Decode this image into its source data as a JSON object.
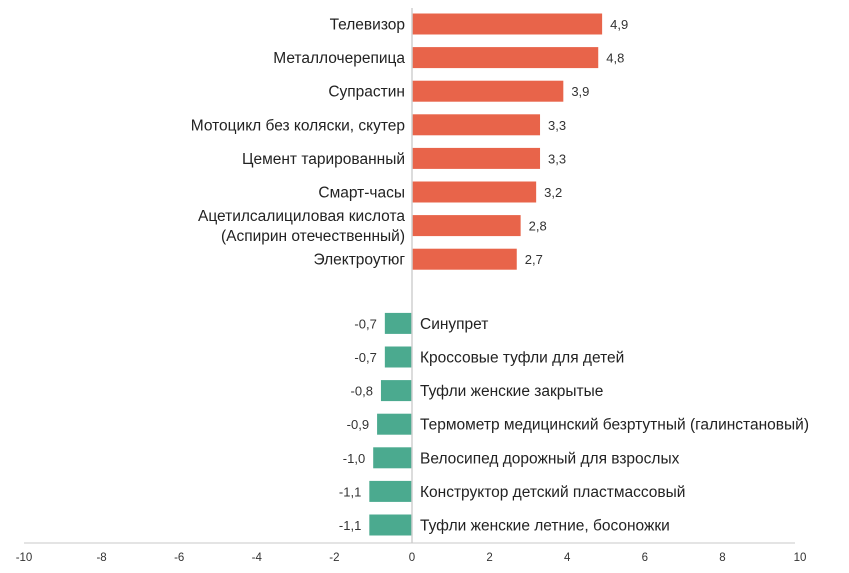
{
  "chart_data": {
    "type": "bar",
    "orientation": "horizontal",
    "xlim": [
      -10,
      10
    ],
    "xticks": [
      "-10",
      "-8",
      "-6",
      "-4",
      "-2",
      "0",
      "2",
      "4",
      "6",
      "8",
      "10"
    ],
    "grid": false,
    "colors": {
      "positive": "#E8644A",
      "negative": "#4BAA8F",
      "axis": "#d0d0d0"
    },
    "categories": [
      "Телевизор",
      "Металлочерепица",
      "Супрастин",
      "Мотоцикл без коляски, скутер",
      "Цемент тарированный",
      "Смарт-часы",
      "Ацетилсалициловая кислота\n(Аспирин отечественный)",
      "Электроутюг",
      "Синупрет",
      "Кроссовые туфли для детей",
      "Туфли женские закрытые",
      "Термометр медицинский безртутный (галинстановый)",
      "Велосипед дорожный для взрослых",
      "Конструктор детский пластмассовый",
      "Туфли женские летние, босоножки"
    ],
    "values": [
      4.9,
      4.8,
      3.9,
      3.3,
      3.3,
      3.2,
      2.8,
      2.7,
      -0.7,
      -0.7,
      -0.8,
      -0.9,
      -1.0,
      -1.1,
      -1.1
    ],
    "value_labels": [
      "4,9",
      "4,8",
      "3,9",
      "3,3",
      "3,3",
      "3,2",
      "2,8",
      "2,7",
      "-0,7",
      "-0,7",
      "-0,8",
      "-0,9",
      "-1,0",
      "-1,1",
      "-1,1"
    ]
  }
}
